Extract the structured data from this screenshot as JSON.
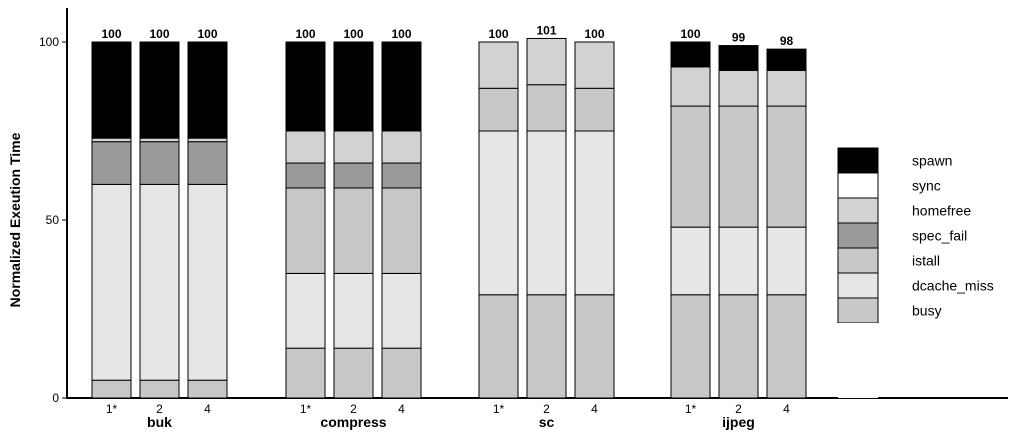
{
  "chart_data": {
    "type": "bar",
    "stacked": true,
    "ylabel": "Normalized Exeution Time",
    "ylim": [
      0,
      100
    ],
    "yticks": [
      0,
      50,
      100
    ],
    "legend_position": "right",
    "groups": [
      {
        "name": "buk",
        "bars": [
          {
            "label": "1*",
            "total": "100",
            "segments": [
              5,
              55,
              0,
              12,
              1,
              0,
              27
            ]
          },
          {
            "label": "2",
            "total": "100",
            "segments": [
              5,
              55,
              0,
              12,
              1,
              0,
              27
            ]
          },
          {
            "label": "4",
            "total": "100",
            "segments": [
              5,
              55,
              0,
              12,
              1,
              0,
              27
            ]
          }
        ]
      },
      {
        "name": "compress",
        "bars": [
          {
            "label": "1*",
            "total": "100",
            "segments": [
              14,
              21,
              24,
              7,
              9,
              0,
              25
            ]
          },
          {
            "label": "2",
            "total": "100",
            "segments": [
              14,
              21,
              24,
              7,
              9,
              0,
              25
            ]
          },
          {
            "label": "4",
            "total": "100",
            "segments": [
              14,
              21,
              24,
              7,
              9,
              0,
              25
            ]
          }
        ]
      },
      {
        "name": "sc",
        "bars": [
          {
            "label": "1*",
            "total": "100",
            "segments": [
              29,
              46,
              12,
              0,
              13,
              0,
              0
            ]
          },
          {
            "label": "2",
            "total": "101",
            "segments": [
              29,
              46,
              13,
              0,
              13,
              0,
              0
            ]
          },
          {
            "label": "4",
            "total": "100",
            "segments": [
              29,
              46,
              12,
              0,
              13,
              0,
              0
            ]
          }
        ]
      },
      {
        "name": "ijpeg",
        "bars": [
          {
            "label": "1*",
            "total": "100",
            "segments": [
              29,
              19,
              34,
              0,
              11,
              0,
              7
            ]
          },
          {
            "label": "2",
            "total": "99",
            "segments": [
              29,
              19,
              34,
              0,
              10,
              0,
              7
            ]
          },
          {
            "label": "4",
            "total": "98",
            "segments": [
              29,
              19,
              34,
              0,
              10,
              0,
              6
            ]
          }
        ]
      }
    ],
    "series": [
      {
        "name": "busy",
        "color": "#c8c8c8"
      },
      {
        "name": "dcache_miss",
        "color": "#e6e6e6"
      },
      {
        "name": "istall",
        "color": "#c8c8c8"
      },
      {
        "name": "spec_fail",
        "color": "#9a9a9a"
      },
      {
        "name": "homefree",
        "color": "#d2d2d2"
      },
      {
        "name": "sync",
        "color": "#ffffff"
      },
      {
        "name": "spawn",
        "color": "#000000"
      }
    ],
    "legend_order": [
      "spawn",
      "sync",
      "homefree",
      "spec_fail",
      "istall",
      "dcache_miss",
      "busy"
    ]
  }
}
